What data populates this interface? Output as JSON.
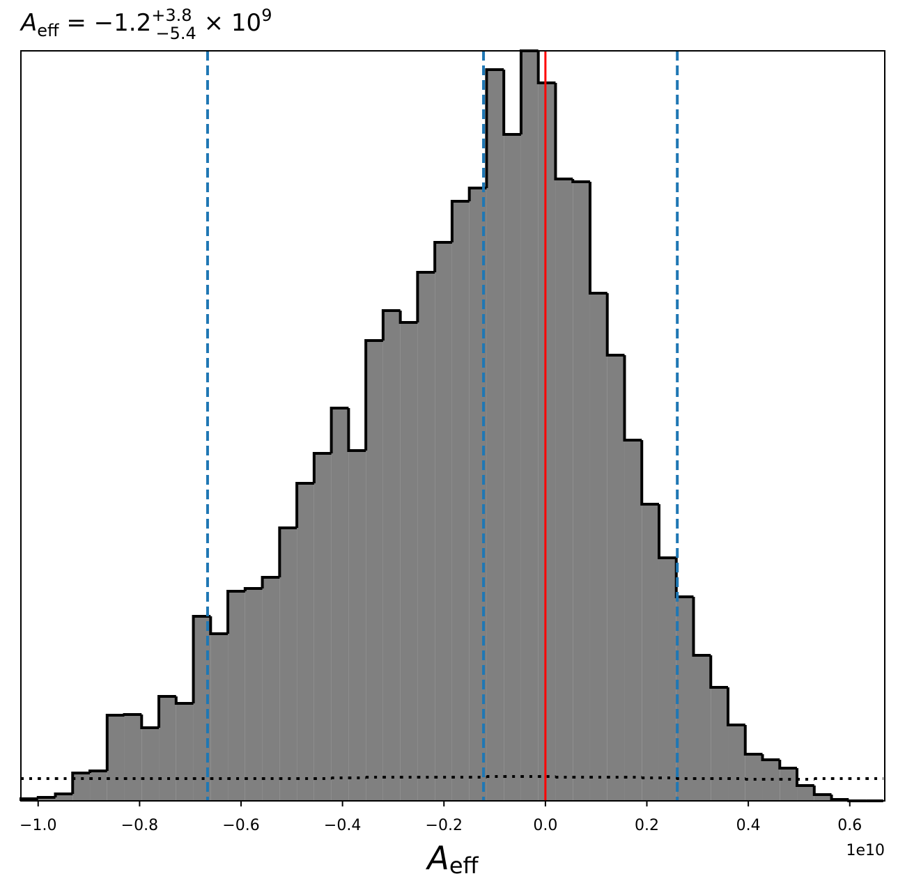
{
  "chart_data": {
    "type": "histogram",
    "title": {
      "symbol": "A",
      "subscript": "eff",
      "equals": " = −1.2",
      "upper": "+3.8",
      "lower": "−5.4",
      "times": " × 10",
      "exponent": "9"
    },
    "xlabel": {
      "symbol": "A",
      "subscript": "eff"
    },
    "x_offset_label": "1e10",
    "bins": [
      -1.034,
      -1.0,
      -0.966,
      -0.932,
      -0.898,
      -0.864,
      -0.83,
      -0.796,
      -0.762,
      -0.728,
      -0.694,
      -0.66,
      -0.626,
      -0.592,
      -0.558,
      -0.524,
      -0.49,
      -0.456,
      -0.422,
      -0.388,
      -0.354,
      -0.32,
      -0.286,
      -0.252,
      -0.218,
      -0.184,
      -0.15,
      -0.116,
      -0.082,
      -0.048,
      -0.014,
      0.02,
      0.054,
      0.088,
      0.122,
      0.156,
      0.19,
      0.224,
      0.258,
      0.292,
      0.326,
      0.36,
      0.394,
      0.428,
      0.462,
      0.496,
      0.53,
      0.564,
      0.598,
      0.632,
      0.666
    ],
    "counts": [
      3,
      5,
      10,
      40,
      43,
      123,
      124,
      105,
      150,
      140,
      265,
      240,
      301,
      305,
      321,
      392,
      456,
      499,
      564,
      503,
      661,
      704,
      687,
      759,
      802,
      861,
      880,
      1050,
      957,
      1077,
      1031,
      893,
      889,
      729,
      640,
      518,
      426,
      349,
      293,
      209,
      163,
      109,
      67,
      59,
      47,
      22,
      9,
      2,
      0,
      0
    ],
    "color": "#808080",
    "edge_color": "#000000",
    "prior": [
      32,
      32,
      32,
      32,
      32,
      32,
      32,
      32,
      32,
      32,
      32,
      32,
      32,
      32,
      32,
      32,
      32,
      32,
      33,
      33,
      34,
      34,
      34,
      34,
      34,
      34,
      34,
      35,
      35,
      35,
      35,
      34,
      34,
      34,
      34,
      34,
      33,
      33,
      32,
      32,
      32,
      32,
      31,
      31,
      31,
      31,
      32,
      32,
      32,
      32
    ],
    "quantile_lines": [
      -0.666,
      -0.122,
      0.26
    ],
    "quantile_color": "#1f77b4",
    "truth": 0.0,
    "truth_color": "#ff0000",
    "xlim": [
      -1.034,
      0.669
    ],
    "ylim": [
      0,
      1077
    ],
    "xticks": [
      {
        "value": -1.0,
        "label": "−1.0"
      },
      {
        "value": -0.8,
        "label": "−0.8"
      },
      {
        "value": -0.6,
        "label": "−0.6"
      },
      {
        "value": -0.4,
        "label": "−0.4"
      },
      {
        "value": -0.2,
        "label": "−0.2"
      },
      {
        "value": 0.0,
        "label": "0.0"
      },
      {
        "value": 0.2,
        "label": "0.2"
      },
      {
        "value": 0.4,
        "label": "0.4"
      },
      {
        "value": 0.6,
        "label": "0.6"
      }
    ]
  }
}
